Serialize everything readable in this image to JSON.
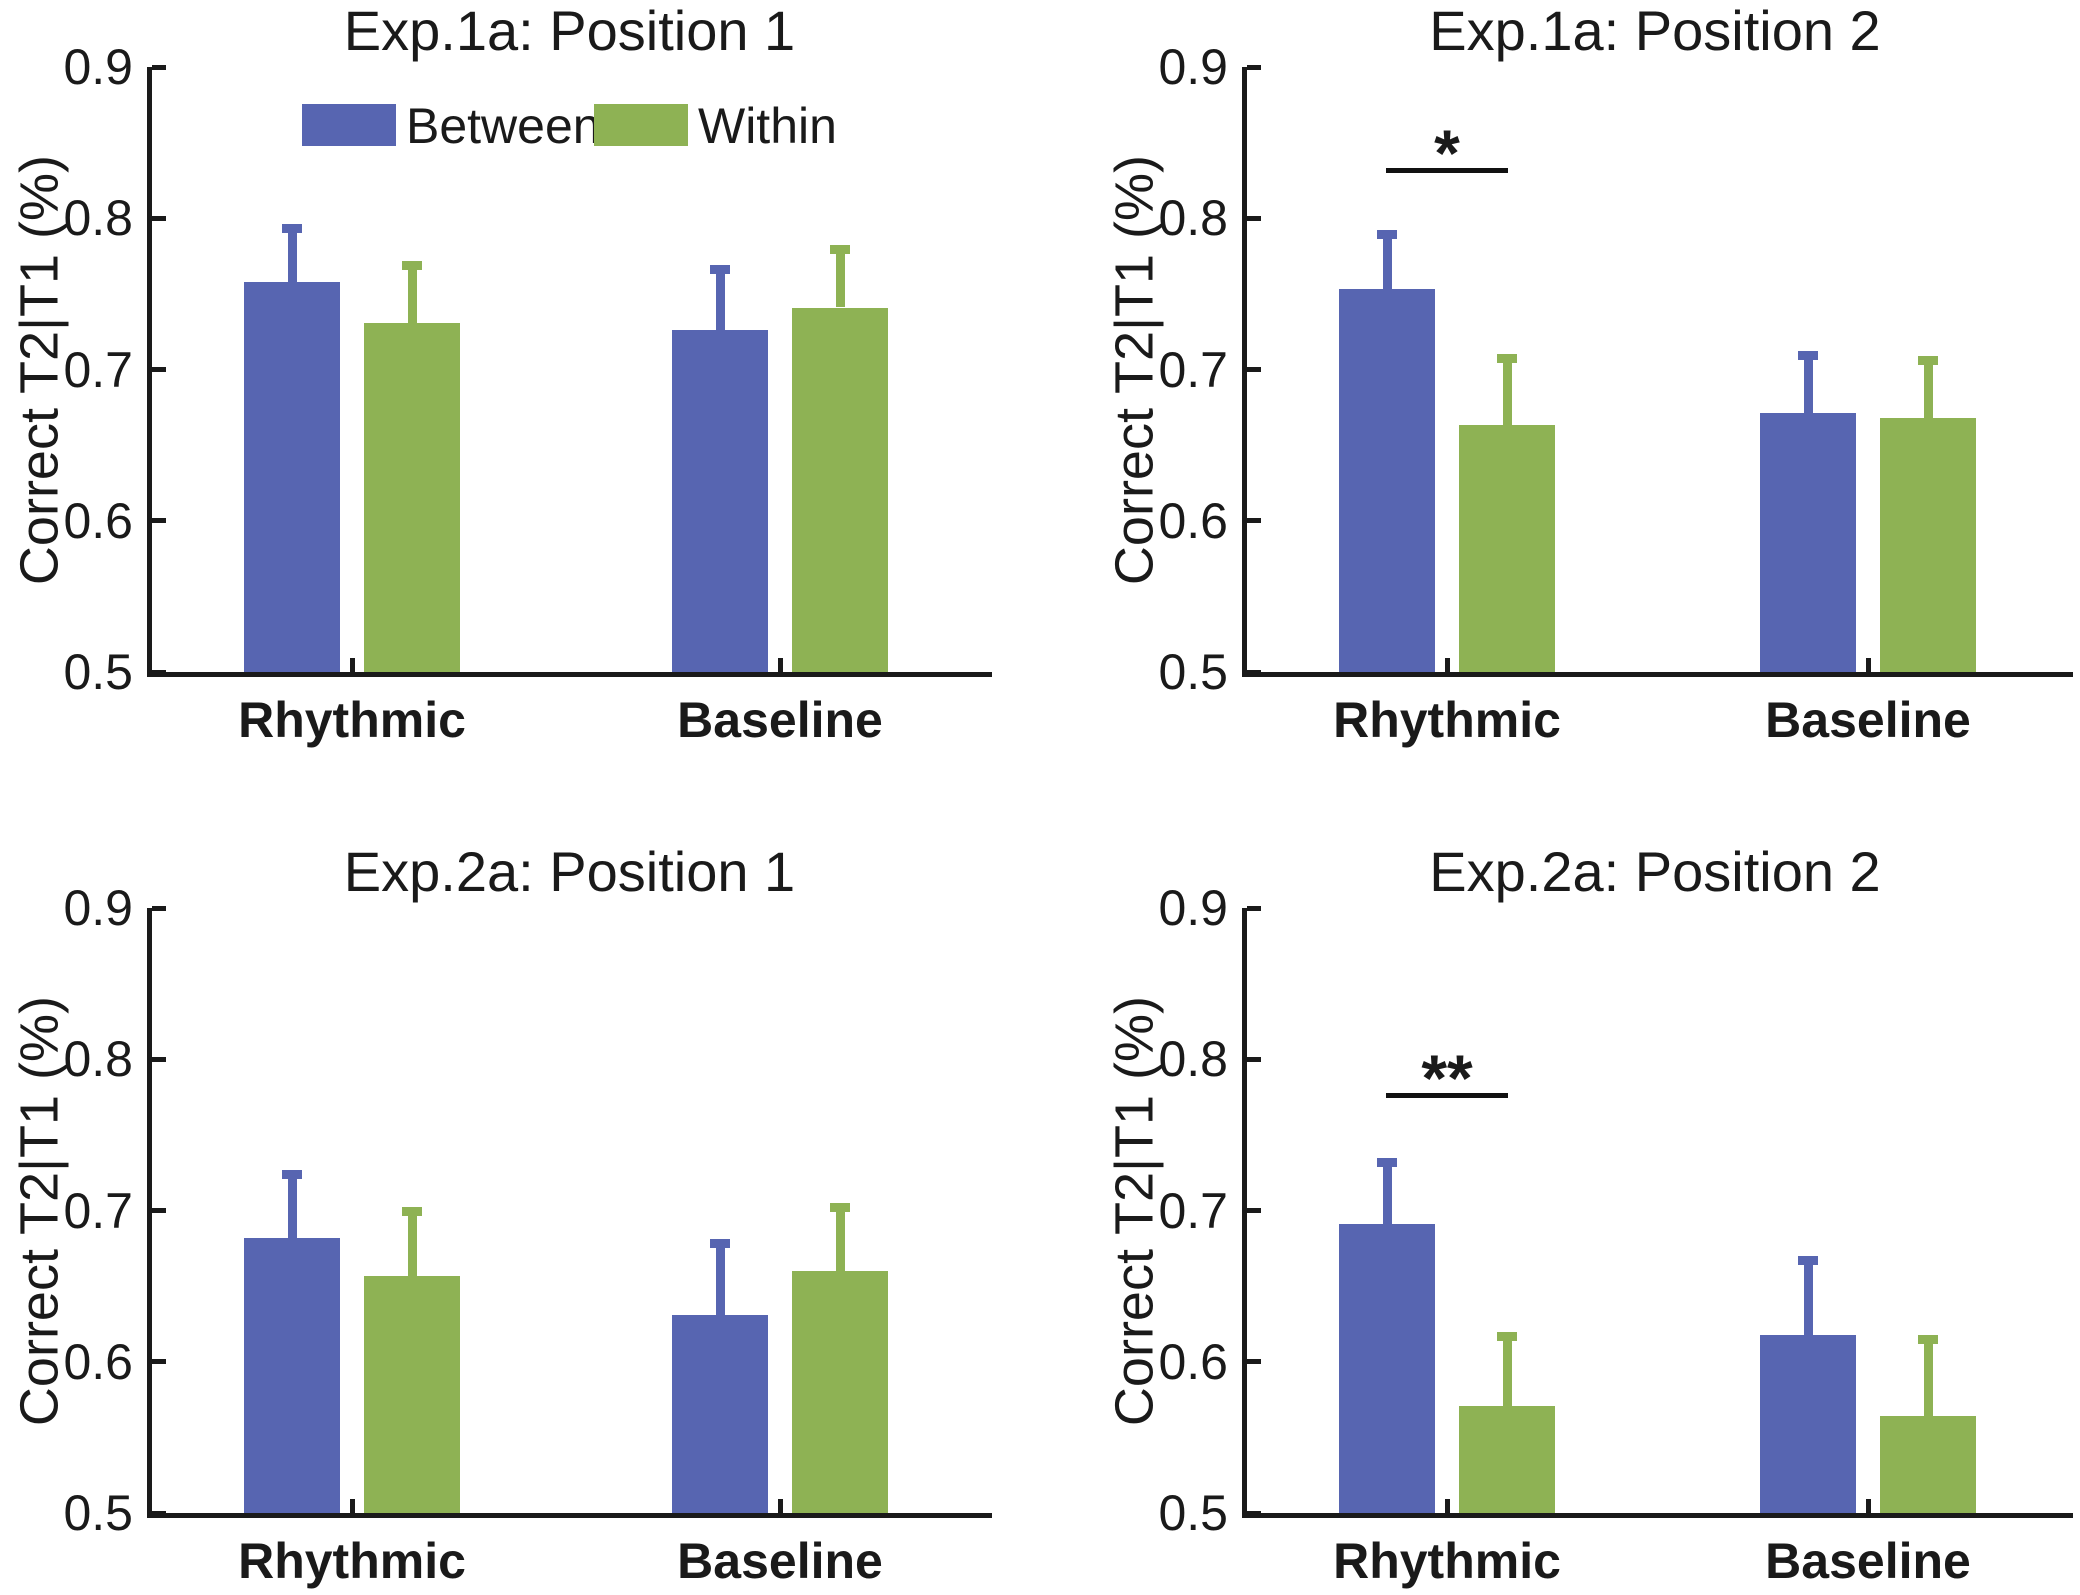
{
  "colors": {
    "axis": "#1a1a1a",
    "text": "#1a1a1a",
    "between": "#5765B1",
    "within": "#8EB254",
    "significance": "#111111"
  },
  "legend": {
    "location": "inside-top-left-subplot-1",
    "items": [
      {
        "label": "Between",
        "color": "#5765B1"
      },
      {
        "label": "Within",
        "color": "#8EB254"
      }
    ]
  },
  "chart_data": [
    {
      "type": "bar",
      "title": "Exp.1a: Position 1",
      "ylabel": "Correct T2|T1 (%)",
      "categories": [
        "Rhythmic",
        "Baseline"
      ],
      "ylim": [
        0.5,
        0.9
      ],
      "yticks": [
        0.5,
        0.6,
        0.7,
        0.8,
        0.9
      ],
      "grid": false,
      "series": [
        {
          "name": "Between",
          "color": "#5765B1",
          "values": [
            0.758,
            0.726
          ],
          "errors_up": [
            0.038,
            0.043
          ]
        },
        {
          "name": "Within",
          "color": "#8EB254",
          "values": [
            0.731,
            0.741
          ],
          "errors_up": [
            0.041,
            0.041
          ]
        }
      ]
    },
    {
      "type": "bar",
      "title": "Exp.1a: Position 2",
      "ylabel": "Correct T2|T1 (%)",
      "categories": [
        "Rhythmic",
        "Baseline"
      ],
      "ylim": [
        0.5,
        0.9
      ],
      "yticks": [
        0.5,
        0.6,
        0.7,
        0.8,
        0.9
      ],
      "grid": false,
      "series": [
        {
          "name": "Between",
          "color": "#5765B1",
          "values": [
            0.753,
            0.671
          ],
          "errors_up": [
            0.039,
            0.041
          ]
        },
        {
          "name": "Within",
          "color": "#8EB254",
          "values": [
            0.663,
            0.668
          ],
          "errors_up": [
            0.047,
            0.041
          ]
        }
      ],
      "significance": {
        "label": "*",
        "group": "Rhythmic",
        "line_y": 0.833
      }
    },
    {
      "type": "bar",
      "title": "Exp.2a: Position 1",
      "ylabel": "Correct T2|T1 (%)",
      "categories": [
        "Rhythmic",
        "Baseline"
      ],
      "ylim": [
        0.5,
        0.9
      ],
      "yticks": [
        0.5,
        0.6,
        0.7,
        0.8,
        0.9
      ],
      "grid": false,
      "series": [
        {
          "name": "Between",
          "color": "#5765B1",
          "values": [
            0.682,
            0.631
          ],
          "errors_up": [
            0.045,
            0.05
          ]
        },
        {
          "name": "Within",
          "color": "#8EB254",
          "values": [
            0.657,
            0.66
          ],
          "errors_up": [
            0.045,
            0.045
          ]
        }
      ]
    },
    {
      "type": "bar",
      "title": "Exp.2a: Position 2",
      "ylabel": "Correct T2|T1 (%)",
      "categories": [
        "Rhythmic",
        "Baseline"
      ],
      "ylim": [
        0.5,
        0.9
      ],
      "yticks": [
        0.5,
        0.6,
        0.7,
        0.8,
        0.9
      ],
      "grid": false,
      "series": [
        {
          "name": "Between",
          "color": "#5765B1",
          "values": [
            0.691,
            0.618
          ],
          "errors_up": [
            0.044,
            0.052
          ]
        },
        {
          "name": "Within",
          "color": "#8EB254",
          "values": [
            0.571,
            0.564
          ],
          "errors_up": [
            0.049,
            0.054
          ]
        }
      ],
      "significance": {
        "label": "**",
        "group": "Rhythmic",
        "line_y": 0.778
      }
    }
  ]
}
